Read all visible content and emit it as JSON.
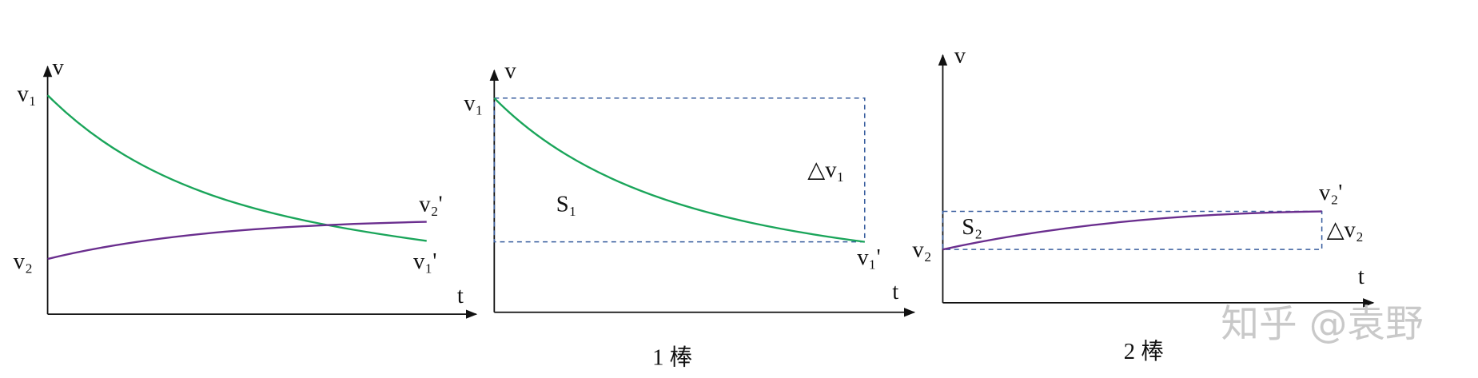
{
  "panels": [
    {
      "y_axis": "v",
      "x_axis": "t",
      "labels": [
        "v₁",
        "v₂",
        "v₂'",
        "v₁'"
      ]
    },
    {
      "y_axis": "v",
      "x_axis": "t",
      "labels": [
        "v₁",
        "S₁",
        "△v₁",
        "v₁'"
      ],
      "caption": "1 棒"
    },
    {
      "y_axis": "v",
      "x_axis": "t",
      "labels": [
        "v₂",
        "S₂",
        "v₂'",
        "△v₂"
      ],
      "caption": "2 棒"
    }
  ],
  "watermark": "知乎 @袁野"
}
